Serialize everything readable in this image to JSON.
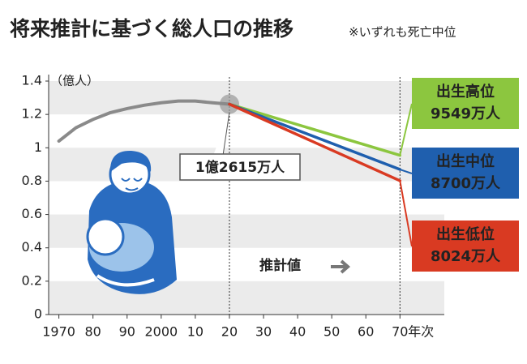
{
  "chart_data": {
    "type": "line",
    "title": "将来推計に基づく総人口の推移",
    "subtitle": "※いずれも死亡中位",
    "y_label": "（億人）",
    "x_label": "年次",
    "annotation": "推計値",
    "xlim": [
      1967,
      2083
    ],
    "ylim": [
      0,
      1.4
    ],
    "xticks": [
      {
        "value": 1970,
        "label": "1970"
      },
      {
        "value": 1980,
        "label": "80"
      },
      {
        "value": 1990,
        "label": "90"
      },
      {
        "value": 2000,
        "label": "2000"
      },
      {
        "value": 2010,
        "label": "10"
      },
      {
        "value": 2020,
        "label": "20"
      },
      {
        "value": 2030,
        "label": "30"
      },
      {
        "value": 2040,
        "label": "40"
      },
      {
        "value": 2050,
        "label": "50"
      },
      {
        "value": 2060,
        "label": "60"
      },
      {
        "value": 2070,
        "label": "70"
      }
    ],
    "yticks": [
      0,
      0.2,
      0.4,
      0.6,
      0.8,
      1,
      1.2,
      1.4
    ],
    "grid": "bands",
    "series": [
      {
        "color": "#8a8a8a",
        "x": [
          1970,
          1975,
          1980,
          1985,
          1990,
          1995,
          2000,
          2005,
          2010,
          2015,
          2020
        ],
        "values": [
          1.04,
          1.12,
          1.17,
          1.21,
          1.235,
          1.255,
          1.27,
          1.28,
          1.28,
          1.27,
          1.2615
        ],
        "value_labels": [
          null,
          null,
          null,
          null,
          null,
          null,
          null,
          null,
          null,
          null,
          "1億2615万人"
        ]
      },
      {
        "name": "出生高位",
        "color": "#8cc63f",
        "x": [
          2020,
          2070
        ],
        "values": [
          1.2615,
          0.9549
        ],
        "value_labels": [
          null,
          "9549万人"
        ]
      },
      {
        "name": "出生中位",
        "color": "#1f5fae",
        "x": [
          2020,
          2070
        ],
        "values": [
          1.2615,
          0.87
        ],
        "value_labels": [
          null,
          "8700万人"
        ]
      },
      {
        "name": "出生低位",
        "color": "#d93a22",
        "x": [
          2020,
          2070
        ],
        "values": [
          1.2615,
          0.8024
        ],
        "value_labels": [
          null,
          "8024万人"
        ]
      }
    ]
  }
}
